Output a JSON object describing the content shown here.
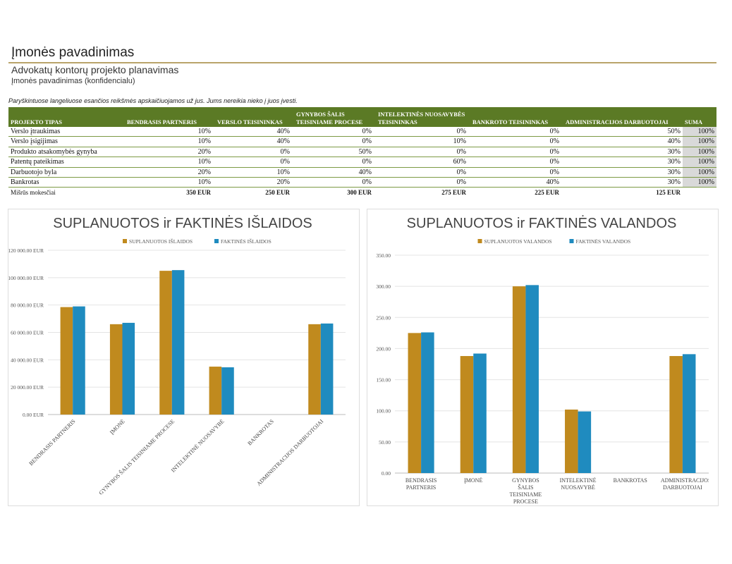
{
  "header": {
    "title": "Įmonės pavadinimas",
    "subtitle": "Advokatų kontorų projekto planavimas",
    "company": "Įmonės pavadinimas (konfidencialu)",
    "note": "Paryškintuose langeliuose esančios reikšmės apskaičiuojamos už jus. Jums nereikia nieko į juos įvesti."
  },
  "table": {
    "columns": [
      "PROJEKTO TIPAS",
      "BENDRASIS PARTNERIS",
      "VERSLO TEISININKAS",
      "GYNYBOS ŠALIS TEISINIAME PROCESE",
      "INTELEKTINĖS NUOSAVYBĖS TEISININKAS",
      "BANKROTO TEISININKAS",
      "ADMINISTRACIJOS DARBUOTOJAI",
      "SUMA"
    ],
    "rows": [
      [
        "Verslo įtraukimas",
        "10%",
        "40%",
        "0%",
        "0%",
        "0%",
        "50%",
        "100%"
      ],
      [
        "Verslo įsigijimas",
        "10%",
        "40%",
        "0%",
        "10%",
        "0%",
        "40%",
        "100%"
      ],
      [
        "Produkto atsakomybės gynyba",
        "20%",
        "0%",
        "50%",
        "0%",
        "0%",
        "30%",
        "100%"
      ],
      [
        "Patentų pateikimas",
        "10%",
        "0%",
        "0%",
        "60%",
        "0%",
        "30%",
        "100%"
      ],
      [
        "Darbuotojo byla",
        "20%",
        "10%",
        "40%",
        "0%",
        "0%",
        "30%",
        "100%"
      ],
      [
        "Bankrotas",
        "10%",
        "20%",
        "0%",
        "0%",
        "40%",
        "30%",
        "100%"
      ]
    ],
    "footer": [
      "Mišrūs mokesčiai",
      "350 EUR",
      "250 EUR",
      "300 EUR",
      "275 EUR",
      "225 EUR",
      "125 EUR"
    ]
  },
  "chart_data": [
    {
      "type": "bar",
      "title": "SUPLANUOTOS ir FAKTINĖS IŠLAIDOS",
      "categories": [
        "BENDRASIS PARTNERIS",
        "ĮMONĖ",
        "GYNYBOS ŠALIS TEISINIAME PROCESE",
        "INTELEKTINĖ NUOSAVYBĖ",
        "BANKROTAS",
        "ADMINISTRACIJOS DARBUOTOJAI"
      ],
      "series": [
        {
          "name": "SUPLANUOTOS IŠLAIDOS",
          "color": "#c08a1e",
          "values": [
            78500,
            66000,
            105000,
            35000,
            0,
            66000
          ]
        },
        {
          "name": "FAKTINĖS IŠLAIDOS",
          "color": "#1f8bbf",
          "values": [
            79000,
            67000,
            105500,
            34500,
            0,
            66500
          ]
        }
      ],
      "ylim": [
        0,
        120000
      ],
      "yticks": [
        {
          "value": 0,
          "label": "0.00 EUR"
        },
        {
          "value": 20000,
          "label": "20 000.00 EUR"
        },
        {
          "value": 40000,
          "label": "40 000.00 EUR"
        },
        {
          "value": 60000,
          "label": "60 000.00 EUR"
        },
        {
          "value": 80000,
          "label": "80 000.00 EUR"
        },
        {
          "value": 100000,
          "label": "100 000.00 EUR"
        },
        {
          "value": 120000,
          "label": "120 000.00 EUR"
        }
      ],
      "grid": true
    },
    {
      "type": "bar",
      "title": "SUPLANUOTOS ir FAKTINĖS VALANDOS",
      "categories": [
        "BENDRASIS PARTNERIS",
        "ĮMONĖ",
        "GYNYBOS ŠALIS TEISINIAME PROCESE",
        "INTELEKTINĖ NUOSAVYBĖ",
        "BANKROTAS",
        "ADMINISTRACIJOS DARBUOTOJAI"
      ],
      "series": [
        {
          "name": "SUPLANUOTOS VALANDOS",
          "color": "#c08a1e",
          "values": [
            225,
            188,
            300,
            102,
            0,
            188
          ]
        },
        {
          "name": "FAKTINĖS VALANDOS",
          "color": "#1f8bbf",
          "values": [
            226,
            192,
            302,
            99,
            0,
            191
          ]
        }
      ],
      "ylim": [
        0,
        350
      ],
      "yticks": [
        {
          "value": 0,
          "label": "0.00"
        },
        {
          "value": 50,
          "label": "50.00"
        },
        {
          "value": 100,
          "label": "100.00"
        },
        {
          "value": 150,
          "label": "150.00"
        },
        {
          "value": 200,
          "label": "200.00"
        },
        {
          "value": 250,
          "label": "250.00"
        },
        {
          "value": 300,
          "label": "300.00"
        },
        {
          "value": 350,
          "label": "350.00"
        }
      ],
      "grid": true
    }
  ]
}
